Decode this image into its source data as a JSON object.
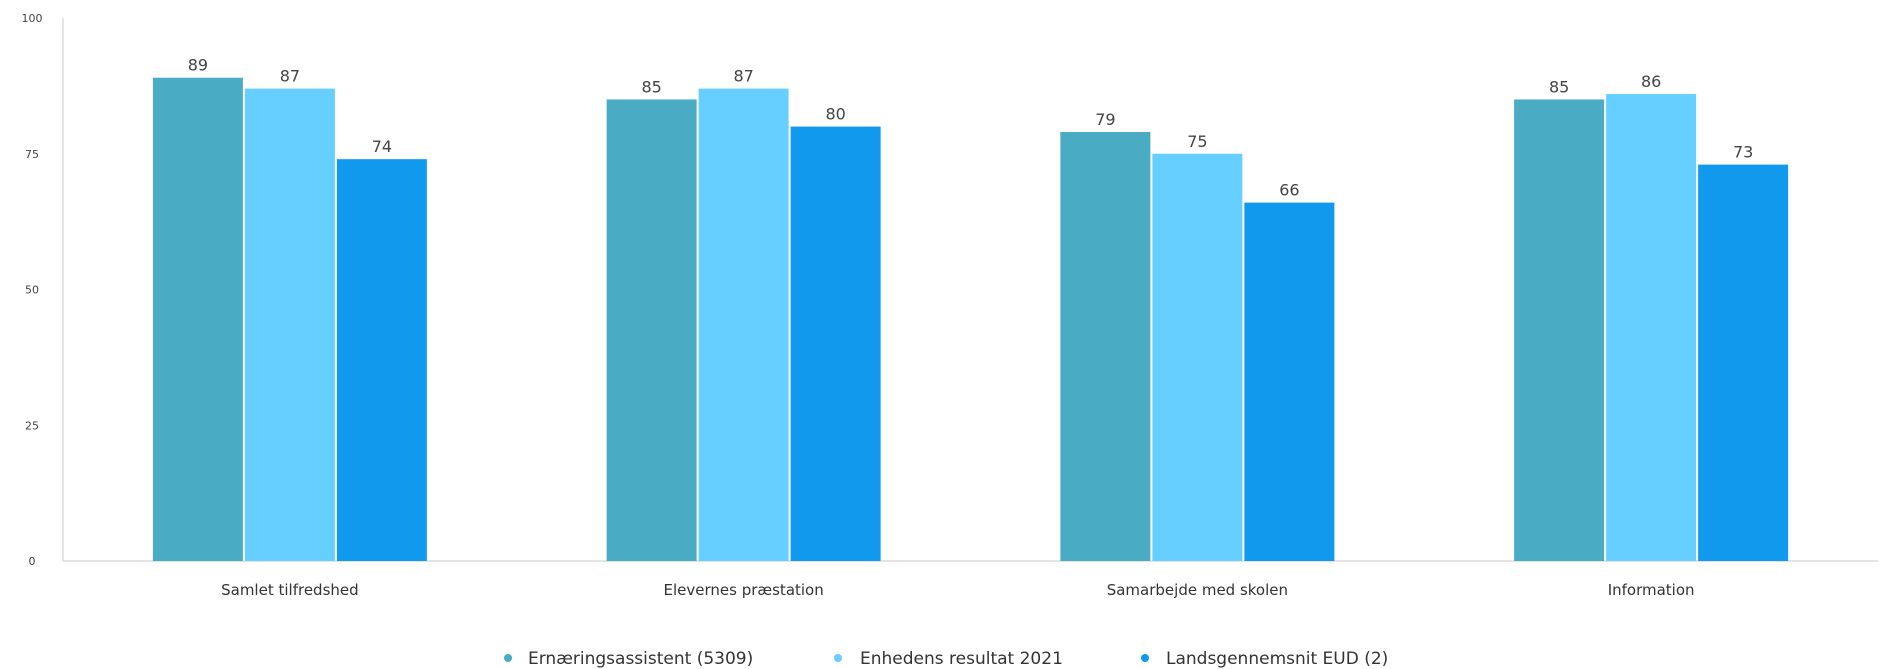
{
  "chart_data": {
    "type": "bar",
    "categories": [
      "Samlet tilfredshed",
      "Elevernes præstation",
      "Samarbejde med skolen",
      "Information"
    ],
    "series": [
      {
        "name": "Ernæringsassistent (5309)",
        "color": "#4AABC5",
        "values": [
          89,
          85,
          79,
          85
        ]
      },
      {
        "name": "Enhedens resultat 2021",
        "color": "#66CFFF",
        "values": [
          87,
          87,
          75,
          86
        ]
      },
      {
        "name": "Landsgennemsnit EUD (2)",
        "color": "#1199EE",
        "values": [
          74,
          80,
          66,
          73
        ]
      }
    ],
    "yticks": [
      0,
      25,
      50,
      75,
      100
    ],
    "ylim": [
      0,
      100
    ],
    "legend_position": "bottom-center",
    "grid": false,
    "title": "",
    "xlabel": "",
    "ylabel": ""
  }
}
